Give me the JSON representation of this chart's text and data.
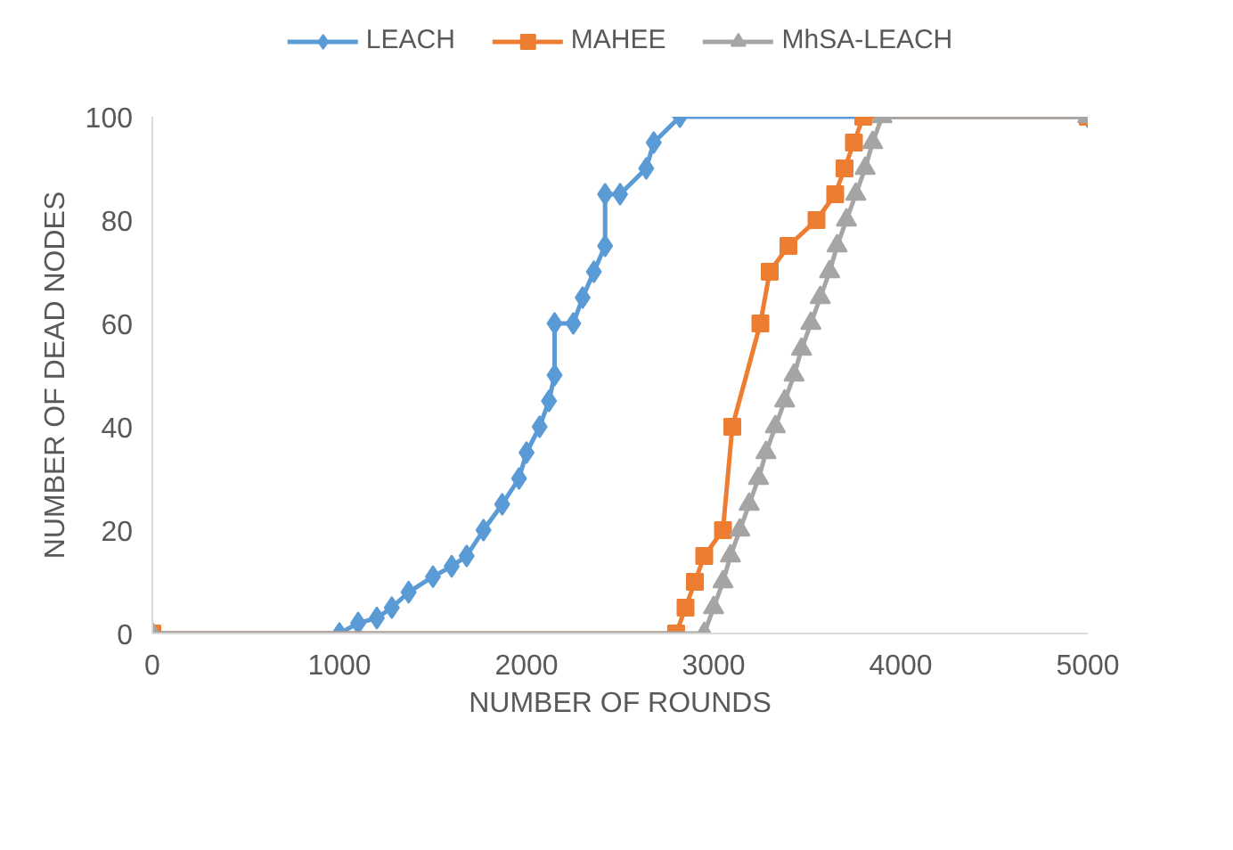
{
  "chart_data": {
    "type": "line",
    "xlabel": "NUMBER OF ROUNDS",
    "ylabel": "NUMBER OF DEAD NODES",
    "xlim": [
      0,
      5000
    ],
    "xticks": [
      0,
      1000,
      2000,
      3000,
      4000,
      5000
    ],
    "ylim": [
      0,
      100
    ],
    "yticks": [
      0,
      20,
      40,
      60,
      80,
      100
    ],
    "grid": false,
    "legend": "top",
    "line_style": "solid",
    "series": [
      {
        "name": "LEACH",
        "color": "#5b9bd5",
        "marker": "diamond",
        "x": [
          0,
          1000,
          1100,
          1200,
          1280,
          1370,
          1500,
          1600,
          1680,
          1770,
          1870,
          1960,
          2000,
          2070,
          2120,
          2150,
          2150,
          2250,
          2300,
          2360,
          2420,
          2420,
          2500,
          2640,
          2680,
          2820,
          5000
        ],
        "values": [
          0,
          0,
          2,
          3,
          5,
          8,
          11,
          13,
          15,
          20,
          25,
          30,
          35,
          40,
          45,
          50,
          60,
          60,
          65,
          70,
          75,
          85,
          85,
          90,
          95,
          100,
          100
        ]
      },
      {
        "name": "MAHEE",
        "color": "#ed7d31",
        "marker": "square",
        "x": [
          0,
          2800,
          2850,
          2900,
          2950,
          3050,
          3100,
          3250,
          3300,
          3400,
          3550,
          3650,
          3700,
          3750,
          3800,
          5000
        ],
        "values": [
          0,
          0,
          5,
          10,
          15,
          20,
          40,
          60,
          70,
          75,
          80,
          85,
          90,
          95,
          100,
          100
        ]
      },
      {
        "name": "MhSA-LEACH",
        "color": "#a5a5a5",
        "marker": "triangle",
        "x": [
          0,
          2950,
          3000,
          3050,
          3090,
          3140,
          3190,
          3240,
          3280,
          3330,
          3380,
          3430,
          3470,
          3520,
          3570,
          3620,
          3660,
          3710,
          3760,
          3810,
          3850,
          3900,
          5000
        ],
        "values": [
          0,
          0,
          5,
          10,
          15,
          20,
          25,
          30,
          35,
          40,
          45,
          50,
          55,
          60,
          65,
          70,
          75,
          80,
          85,
          90,
          95,
          100,
          100
        ]
      }
    ]
  }
}
